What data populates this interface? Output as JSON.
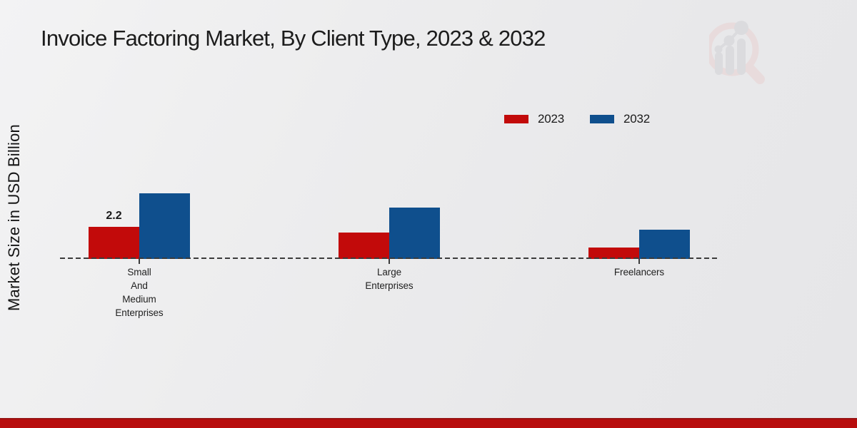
{
  "chart_data": {
    "type": "bar",
    "title": "Invoice Factoring Market, By Client Type, 2023 & 2032",
    "ylabel": "Market Size in USD Billion",
    "xlabel": "",
    "categories": [
      "Small\nAnd\nMedium\nEnterprises",
      "Large\nEnterprises",
      "Freelancers"
    ],
    "series": [
      {
        "name": "2023",
        "color": "#c20a0a",
        "values": [
          2.2,
          1.8,
          0.8
        ]
      },
      {
        "name": "2032",
        "color": "#0f4f8d",
        "values": [
          4.5,
          3.5,
          2.0
        ]
      }
    ],
    "annotations": [
      {
        "series": "2023",
        "category_index": 0,
        "text": "2.2"
      }
    ],
    "ylim": [
      0,
      5
    ],
    "grid": false,
    "baseline_style": "dashed",
    "legend_position": "top-right"
  },
  "branding": {
    "logo_name": "magnifier-bar-chart-watermark",
    "footer_band_color": "#b80d0d"
  }
}
